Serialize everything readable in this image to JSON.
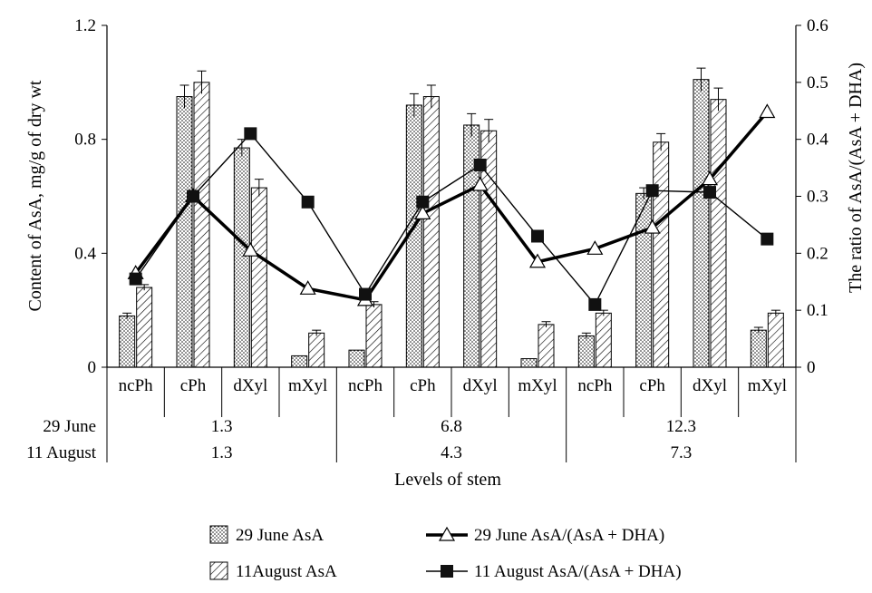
{
  "chart_data": {
    "type": "bar",
    "xlabel": "Levels of stem",
    "ylabel_left": "Content of AsA, mg/g of dry wt",
    "ylabel_right": "The ratio of AsA/(AsA + DHA)",
    "ylim_left": [
      0,
      1.2
    ],
    "ylim_right": [
      0,
      0.6
    ],
    "yticks_left": [
      "0",
      "0.4",
      "0.8",
      "1.2"
    ],
    "yticks_right": [
      "0",
      "0.1",
      "0.2",
      "0.3",
      "0.4",
      "0.5",
      "0.6"
    ],
    "categories": [
      "ncPh",
      "cPh",
      "dXyl",
      "mXyl",
      "ncPh",
      "cPh",
      "dXyl",
      "mXyl",
      "ncPh",
      "cPh",
      "dXyl",
      "mXyl"
    ],
    "group_rows": [
      {
        "label": "29 June",
        "values": [
          "1.3",
          "6.8",
          "12.3"
        ]
      },
      {
        "label": "11 August",
        "values": [
          "1.3",
          "4.3",
          "7.3"
        ]
      }
    ],
    "bar_series": [
      {
        "name": "29 June AsA",
        "pattern": "dots",
        "values": [
          0.18,
          0.95,
          0.77,
          0.04,
          0.06,
          0.92,
          0.85,
          0.03,
          0.11,
          0.61,
          1.01,
          0.13
        ],
        "errors": [
          0.01,
          0.04,
          0.03,
          0.0,
          0.0,
          0.04,
          0.04,
          0.0,
          0.01,
          0.02,
          0.04,
          0.01
        ]
      },
      {
        "name": "11August AsA",
        "pattern": "hatch",
        "values": [
          0.28,
          1.0,
          0.63,
          0.12,
          0.22,
          0.95,
          0.83,
          0.15,
          0.19,
          0.79,
          0.94,
          0.19
        ],
        "errors": [
          0.01,
          0.04,
          0.03,
          0.01,
          0.01,
          0.04,
          0.04,
          0.01,
          0.01,
          0.03,
          0.04,
          0.01
        ]
      }
    ],
    "line_series": [
      {
        "name": "29 June AsA/(AsA + DHA)",
        "marker": "triangle-open",
        "width": 3.5,
        "values": [
          0.165,
          0.3,
          0.205,
          0.138,
          0.118,
          0.27,
          0.32,
          0.185,
          0.208,
          0.245,
          0.33,
          0.448
        ]
      },
      {
        "name": "11 August AsA/(AsA + DHA)",
        "marker": "square-filled",
        "width": 1.4,
        "values": [
          0.155,
          0.3,
          0.41,
          0.29,
          0.128,
          0.29,
          0.355,
          0.23,
          0.11,
          0.31,
          0.307,
          0.225
        ]
      }
    ],
    "legend": {
      "placement": "bottom",
      "items": [
        {
          "label": "29 June AsA",
          "kind": "bar-dots"
        },
        {
          "label": "29 June AsA/(AsA + DHA)",
          "kind": "line-triangle"
        },
        {
          "label": "11August AsA",
          "kind": "bar-hatch"
        },
        {
          "label": "11 August AsA/(AsA + DHA)",
          "kind": "line-square"
        }
      ]
    },
    "colors": {
      "ink": "#000000",
      "background": "#ffffff"
    }
  }
}
